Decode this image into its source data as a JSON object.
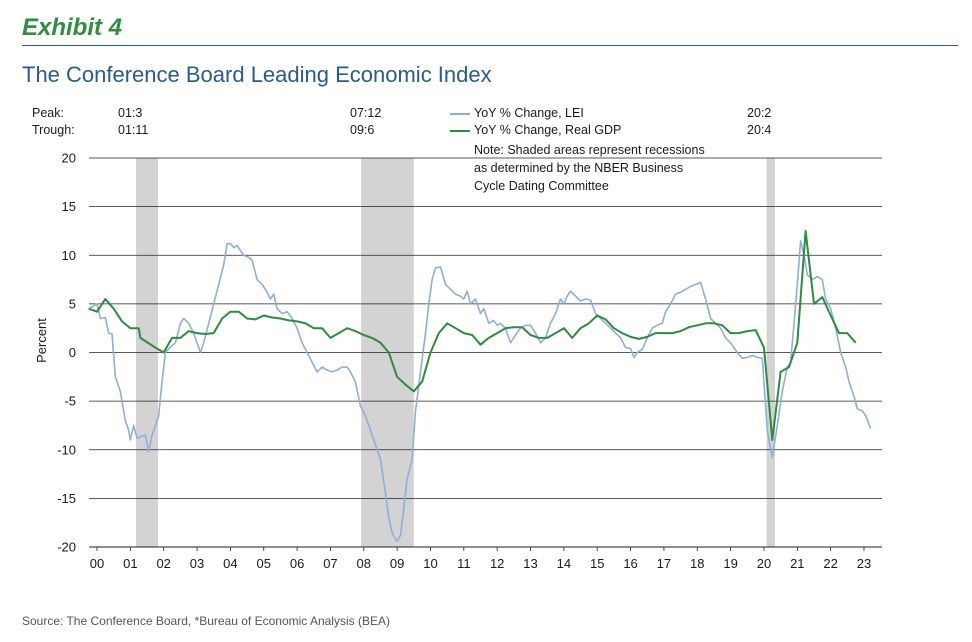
{
  "header": {
    "exhibit": "Exhibit 4",
    "title": "The Conference Board Leading Economic Index"
  },
  "annotations": {
    "peak_label": "Peak:",
    "trough_label": "Trough:",
    "peaks": [
      "01:3",
      "07:12",
      "20:2"
    ],
    "troughs": [
      "01:11",
      "09:6",
      "20:4"
    ]
  },
  "note": {
    "lines": [
      "Note: Shaded areas represent recessions",
      "as determined by the NBER Business",
      "Cycle Dating Committee"
    ]
  },
  "source": "Source: The Conference Board, *Bureau of Economic Analysis (BEA)",
  "chart_data": {
    "type": "line",
    "ylabel": "Percent",
    "ylim": [
      -20,
      20
    ],
    "yticks": [
      20,
      15,
      10,
      5,
      0,
      -5,
      -10,
      -15,
      -20
    ],
    "xlim": [
      2000,
      2023.5
    ],
    "xticks": [
      {
        "v": 2000,
        "label": "00"
      },
      {
        "v": 2001,
        "label": "01"
      },
      {
        "v": 2002,
        "label": "02"
      },
      {
        "v": 2003,
        "label": "03"
      },
      {
        "v": 2004,
        "label": "04"
      },
      {
        "v": 2005,
        "label": "05"
      },
      {
        "v": 2006,
        "label": "06"
      },
      {
        "v": 2007,
        "label": "07"
      },
      {
        "v": 2008,
        "label": "08"
      },
      {
        "v": 2009,
        "label": "09"
      },
      {
        "v": 2010,
        "label": "10"
      },
      {
        "v": 2011,
        "label": "11"
      },
      {
        "v": 2012,
        "label": "12"
      },
      {
        "v": 2013,
        "label": "13"
      },
      {
        "v": 2014,
        "label": "14"
      },
      {
        "v": 2015,
        "label": "15"
      },
      {
        "v": 2016,
        "label": "16"
      },
      {
        "v": 2017,
        "label": "17"
      },
      {
        "v": 2018,
        "label": "18"
      },
      {
        "v": 2019,
        "label": "19"
      },
      {
        "v": 2020,
        "label": "20"
      },
      {
        "v": 2021,
        "label": "21"
      },
      {
        "v": 2022,
        "label": "22"
      },
      {
        "v": 2023,
        "label": "23"
      }
    ],
    "grid": "horizontal",
    "legend_position": "top-center",
    "recessions": [
      {
        "start": 2001.17,
        "end": 2001.83
      },
      {
        "start": 2007.92,
        "end": 2009.5
      },
      {
        "start": 2020.08,
        "end": 2020.33
      }
    ],
    "series": [
      {
        "name": "YoY % Change, LEI",
        "color": "#8eaedb",
        "points": [
          [
            1999.75,
            4.5
          ],
          [
            2000.0,
            5.0
          ],
          [
            2000.1,
            3.5
          ],
          [
            2000.25,
            3.6
          ],
          [
            2000.35,
            2.0
          ],
          [
            2000.45,
            1.9
          ],
          [
            2000.55,
            -2.5
          ],
          [
            2000.7,
            -4.0
          ],
          [
            2000.85,
            -7.0
          ],
          [
            2000.95,
            -8.0
          ],
          [
            2001.0,
            -9.0
          ],
          [
            2001.1,
            -7.5
          ],
          [
            2001.2,
            -8.8
          ],
          [
            2001.35,
            -8.6
          ],
          [
            2001.45,
            -8.5
          ],
          [
            2001.55,
            -10.2
          ],
          [
            2001.65,
            -8.5
          ],
          [
            2001.75,
            -7.5
          ],
          [
            2001.85,
            -6.5
          ],
          [
            2001.95,
            -3.0
          ],
          [
            2002.05,
            0.0
          ],
          [
            2002.2,
            0.6
          ],
          [
            2002.35,
            1.0
          ],
          [
            2002.5,
            3.0
          ],
          [
            2002.6,
            3.5
          ],
          [
            2002.75,
            3.0
          ],
          [
            2002.9,
            2.0
          ],
          [
            2003.0,
            1.0
          ],
          [
            2003.1,
            0.0
          ],
          [
            2003.2,
            1.0
          ],
          [
            2003.35,
            3.0
          ],
          [
            2003.5,
            5.0
          ],
          [
            2003.65,
            7.0
          ],
          [
            2003.8,
            9.0
          ],
          [
            2003.9,
            11.2
          ],
          [
            2004.0,
            11.2
          ],
          [
            2004.1,
            10.8
          ],
          [
            2004.2,
            11.0
          ],
          [
            2004.3,
            10.5
          ],
          [
            2004.4,
            10.0
          ],
          [
            2004.55,
            9.8
          ],
          [
            2004.65,
            9.5
          ],
          [
            2004.8,
            7.5
          ],
          [
            2004.95,
            7.0
          ],
          [
            2005.1,
            6.2
          ],
          [
            2005.2,
            5.5
          ],
          [
            2005.3,
            6.0
          ],
          [
            2005.4,
            4.5
          ],
          [
            2005.55,
            4.0
          ],
          [
            2005.7,
            4.2
          ],
          [
            2005.85,
            3.5
          ],
          [
            2006.0,
            2.5
          ],
          [
            2006.15,
            1.0
          ],
          [
            2006.3,
            0.0
          ],
          [
            2006.45,
            -1.0
          ],
          [
            2006.6,
            -2.0
          ],
          [
            2006.75,
            -1.5
          ],
          [
            2006.9,
            -1.8
          ],
          [
            2007.05,
            -2.0
          ],
          [
            2007.2,
            -1.8
          ],
          [
            2007.35,
            -1.5
          ],
          [
            2007.5,
            -1.5
          ],
          [
            2007.6,
            -2.0
          ],
          [
            2007.75,
            -3.0
          ],
          [
            2007.9,
            -5.5
          ],
          [
            2008.05,
            -6.5
          ],
          [
            2008.2,
            -8.0
          ],
          [
            2008.35,
            -9.5
          ],
          [
            2008.5,
            -11.0
          ],
          [
            2008.65,
            -14.5
          ],
          [
            2008.75,
            -17.0
          ],
          [
            2008.85,
            -18.5
          ],
          [
            2008.95,
            -19.2
          ],
          [
            2009.0,
            -19.4
          ],
          [
            2009.1,
            -18.8
          ],
          [
            2009.2,
            -16.0
          ],
          [
            2009.3,
            -13.0
          ],
          [
            2009.45,
            -11.0
          ],
          [
            2009.55,
            -6.0
          ],
          [
            2009.7,
            -2.0
          ],
          [
            2009.85,
            2.0
          ],
          [
            2009.95,
            5.0
          ],
          [
            2010.05,
            7.5
          ],
          [
            2010.15,
            8.7
          ],
          [
            2010.3,
            8.8
          ],
          [
            2010.45,
            7.0
          ],
          [
            2010.6,
            6.5
          ],
          [
            2010.75,
            6.0
          ],
          [
            2010.9,
            5.8
          ],
          [
            2011.0,
            5.5
          ],
          [
            2011.1,
            6.3
          ],
          [
            2011.2,
            5.0
          ],
          [
            2011.35,
            5.5
          ],
          [
            2011.5,
            4.0
          ],
          [
            2011.6,
            4.5
          ],
          [
            2011.75,
            3.0
          ],
          [
            2011.9,
            3.3
          ],
          [
            2012.0,
            2.8
          ],
          [
            2012.1,
            3.0
          ],
          [
            2012.25,
            2.5
          ],
          [
            2012.4,
            1.0
          ],
          [
            2012.55,
            1.8
          ],
          [
            2012.7,
            2.5
          ],
          [
            2012.85,
            2.8
          ],
          [
            2013.0,
            2.8
          ],
          [
            2013.15,
            2.0
          ],
          [
            2013.3,
            1.0
          ],
          [
            2013.45,
            1.5
          ],
          [
            2013.6,
            3.0
          ],
          [
            2013.75,
            4.0
          ],
          [
            2013.9,
            5.5
          ],
          [
            2014.0,
            5.0
          ],
          [
            2014.1,
            5.8
          ],
          [
            2014.2,
            6.3
          ],
          [
            2014.35,
            5.8
          ],
          [
            2014.5,
            5.3
          ],
          [
            2014.65,
            5.5
          ],
          [
            2014.8,
            5.4
          ],
          [
            2014.95,
            4.0
          ],
          [
            2015.1,
            3.5
          ],
          [
            2015.25,
            3.0
          ],
          [
            2015.4,
            2.5
          ],
          [
            2015.55,
            2.0
          ],
          [
            2015.7,
            1.5
          ],
          [
            2015.85,
            0.5
          ],
          [
            2016.0,
            0.4
          ],
          [
            2016.1,
            -0.5
          ],
          [
            2016.2,
            0.0
          ],
          [
            2016.35,
            0.3
          ],
          [
            2016.5,
            1.5
          ],
          [
            2016.65,
            2.5
          ],
          [
            2016.8,
            2.8
          ],
          [
            2016.95,
            3.0
          ],
          [
            2017.05,
            4.2
          ],
          [
            2017.2,
            5.0
          ],
          [
            2017.35,
            6.0
          ],
          [
            2017.5,
            6.2
          ],
          [
            2017.65,
            6.5
          ],
          [
            2017.8,
            6.8
          ],
          [
            2017.95,
            7.0
          ],
          [
            2018.1,
            7.2
          ],
          [
            2018.25,
            5.5
          ],
          [
            2018.4,
            3.5
          ],
          [
            2018.55,
            3.0
          ],
          [
            2018.7,
            2.5
          ],
          [
            2018.85,
            1.5
          ],
          [
            2019.0,
            1.0
          ],
          [
            2019.1,
            0.5
          ],
          [
            2019.2,
            0.0
          ],
          [
            2019.35,
            -0.6
          ],
          [
            2019.5,
            -0.5
          ],
          [
            2019.65,
            -0.3
          ],
          [
            2019.8,
            -0.5
          ],
          [
            2019.95,
            -0.6
          ],
          [
            2020.1,
            -8.0
          ],
          [
            2020.25,
            -10.8
          ],
          [
            2020.4,
            -7.5
          ],
          [
            2020.55,
            -4.0
          ],
          [
            2020.7,
            -1.5
          ],
          [
            2020.8,
            -1.0
          ],
          [
            2020.9,
            3.0
          ],
          [
            2021.0,
            7.0
          ],
          [
            2021.1,
            11.5
          ],
          [
            2021.2,
            10.0
          ],
          [
            2021.3,
            8.0
          ],
          [
            2021.45,
            7.5
          ],
          [
            2021.6,
            7.8
          ],
          [
            2021.75,
            7.5
          ],
          [
            2021.85,
            5.5
          ],
          [
            2022.0,
            4.5
          ],
          [
            2022.15,
            2.5
          ],
          [
            2022.3,
            0.0
          ],
          [
            2022.45,
            -1.5
          ],
          [
            2022.55,
            -3.0
          ],
          [
            2022.7,
            -4.5
          ],
          [
            2022.8,
            -5.8
          ],
          [
            2022.95,
            -6.0
          ],
          [
            2023.05,
            -6.5
          ],
          [
            2023.2,
            -7.8
          ]
        ]
      },
      {
        "name": "YoY % Change, Real GDP",
        "color": "#2e8b3f",
        "points": [
          [
            1999.75,
            4.5
          ],
          [
            2000.0,
            4.2
          ],
          [
            2000.25,
            5.5
          ],
          [
            2000.5,
            4.5
          ],
          [
            2000.75,
            3.2
          ],
          [
            2001.0,
            2.5
          ],
          [
            2001.25,
            2.5
          ],
          [
            2001.3,
            1.5
          ],
          [
            2001.75,
            0.5
          ],
          [
            2002.0,
            0.0
          ],
          [
            2002.25,
            1.5
          ],
          [
            2002.5,
            1.5
          ],
          [
            2002.75,
            2.2
          ],
          [
            2003.0,
            2.0
          ],
          [
            2003.25,
            1.9
          ],
          [
            2003.5,
            2.0
          ],
          [
            2003.75,
            3.5
          ],
          [
            2004.0,
            4.2
          ],
          [
            2004.25,
            4.2
          ],
          [
            2004.5,
            3.5
          ],
          [
            2004.75,
            3.4
          ],
          [
            2005.0,
            3.8
          ],
          [
            2005.25,
            3.6
          ],
          [
            2005.5,
            3.5
          ],
          [
            2005.75,
            3.3
          ],
          [
            2006.0,
            3.2
          ],
          [
            2006.25,
            3.0
          ],
          [
            2006.5,
            2.5
          ],
          [
            2006.75,
            2.5
          ],
          [
            2007.0,
            1.5
          ],
          [
            2007.25,
            2.0
          ],
          [
            2007.5,
            2.5
          ],
          [
            2007.75,
            2.2
          ],
          [
            2008.0,
            1.8
          ],
          [
            2008.25,
            1.5
          ],
          [
            2008.5,
            1.0
          ],
          [
            2008.75,
            0.0
          ],
          [
            2009.0,
            -2.5
          ],
          [
            2009.25,
            -3.3
          ],
          [
            2009.5,
            -4.0
          ],
          [
            2009.75,
            -3.0
          ],
          [
            2010.0,
            0.0
          ],
          [
            2010.25,
            2.0
          ],
          [
            2010.5,
            3.0
          ],
          [
            2010.75,
            2.5
          ],
          [
            2011.0,
            2.0
          ],
          [
            2011.25,
            1.8
          ],
          [
            2011.5,
            0.8
          ],
          [
            2011.75,
            1.5
          ],
          [
            2012.0,
            2.0
          ],
          [
            2012.25,
            2.5
          ],
          [
            2012.5,
            2.6
          ],
          [
            2012.75,
            2.6
          ],
          [
            2013.0,
            1.8
          ],
          [
            2013.25,
            1.5
          ],
          [
            2013.5,
            1.5
          ],
          [
            2013.75,
            2.0
          ],
          [
            2014.0,
            2.5
          ],
          [
            2014.25,
            1.5
          ],
          [
            2014.5,
            2.5
          ],
          [
            2014.75,
            3.0
          ],
          [
            2015.0,
            3.8
          ],
          [
            2015.25,
            3.4
          ],
          [
            2015.5,
            2.5
          ],
          [
            2015.75,
            2.0
          ],
          [
            2016.0,
            1.6
          ],
          [
            2016.25,
            1.4
          ],
          [
            2016.5,
            1.6
          ],
          [
            2016.75,
            2.0
          ],
          [
            2017.0,
            2.0
          ],
          [
            2017.25,
            2.0
          ],
          [
            2017.5,
            2.2
          ],
          [
            2017.75,
            2.6
          ],
          [
            2018.0,
            2.8
          ],
          [
            2018.25,
            3.0
          ],
          [
            2018.5,
            3.0
          ],
          [
            2018.75,
            2.8
          ],
          [
            2019.0,
            2.0
          ],
          [
            2019.25,
            2.0
          ],
          [
            2019.5,
            2.2
          ],
          [
            2019.75,
            2.3
          ],
          [
            2020.0,
            0.5
          ],
          [
            2020.25,
            -9.0
          ],
          [
            2020.5,
            -2.0
          ],
          [
            2020.75,
            -1.5
          ],
          [
            2021.0,
            1.0
          ],
          [
            2021.25,
            12.5
          ],
          [
            2021.5,
            5.0
          ],
          [
            2021.75,
            5.7
          ],
          [
            2022.0,
            3.8
          ],
          [
            2022.25,
            2.0
          ],
          [
            2022.5,
            2.0
          ],
          [
            2022.75,
            1.0
          ]
        ]
      }
    ]
  }
}
